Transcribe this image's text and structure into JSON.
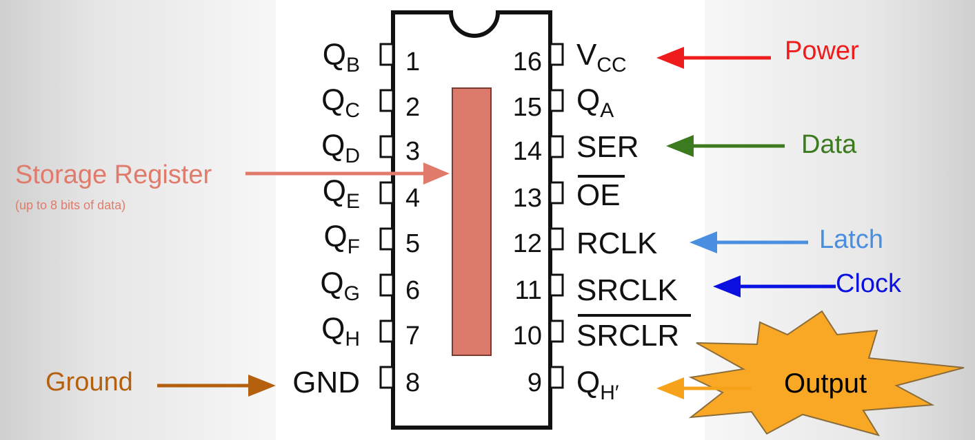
{
  "chip": {
    "left_pins": [
      {
        "number": "1",
        "name": "Q",
        "sub": "B"
      },
      {
        "number": "2",
        "name": "Q",
        "sub": "C"
      },
      {
        "number": "3",
        "name": "Q",
        "sub": "D"
      },
      {
        "number": "4",
        "name": "Q",
        "sub": "E"
      },
      {
        "number": "5",
        "name": "Q",
        "sub": "F"
      },
      {
        "number": "6",
        "name": "Q",
        "sub": "G"
      },
      {
        "number": "7",
        "name": "Q",
        "sub": "H"
      },
      {
        "number": "8",
        "name": "GND",
        "sub": ""
      }
    ],
    "right_pins": [
      {
        "number": "16",
        "name": "V",
        "sub": "CC",
        "overline": false
      },
      {
        "number": "15",
        "name": "Q",
        "sub": "A",
        "overline": false
      },
      {
        "number": "14",
        "name": "SER",
        "sub": "",
        "overline": false
      },
      {
        "number": "13",
        "name": "OE",
        "sub": "",
        "overline": true
      },
      {
        "number": "12",
        "name": "RCLK",
        "sub": "",
        "overline": false
      },
      {
        "number": "11",
        "name": "SRCLK",
        "sub": "",
        "overline": false
      },
      {
        "number": "10",
        "name": "SRCLR",
        "sub": "",
        "overline": true
      },
      {
        "number": "9",
        "name": "Q",
        "sub": "H′",
        "overline": false
      }
    ],
    "storage_color": "#dc7b6b"
  },
  "callouts": {
    "power": {
      "label": "Power",
      "color": "#ee1c1c"
    },
    "data": {
      "label": "Data",
      "color": "#3b7a1e"
    },
    "latch": {
      "label": "Latch",
      "color": "#4a8ee0"
    },
    "clock": {
      "label": "Clock",
      "color": "#0a10e0"
    },
    "storage": {
      "label": "Storage Register",
      "sublabel": "(up to 8 bits of data)",
      "color": "#e07b6b"
    },
    "ground": {
      "label": "Ground",
      "color": "#b5600e"
    },
    "output": {
      "label": "Output",
      "color": "#f7a21b",
      "burst_color": "#f9a825"
    }
  }
}
